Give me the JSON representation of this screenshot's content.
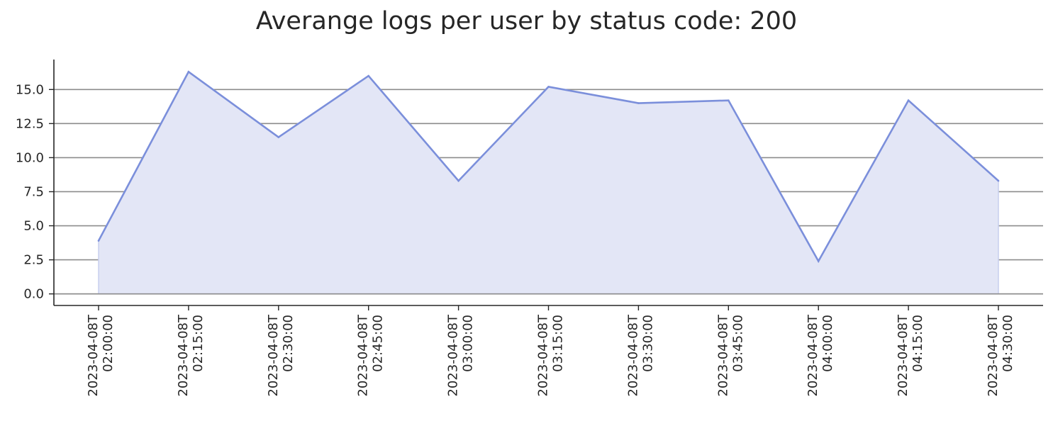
{
  "chart_data": {
    "type": "area",
    "title": "Averange logs per user by status code: 200",
    "xlabel": "",
    "ylabel": "",
    "x": [
      "2023-04-08T02:00:00",
      "2023-04-08T02:15:00",
      "2023-04-08T02:30:00",
      "2023-04-08T02:45:00",
      "2023-04-08T03:00:00",
      "2023-04-08T03:15:00",
      "2023-04-08T03:30:00",
      "2023-04-08T03:45:00",
      "2023-04-08T04:00:00",
      "2023-04-08T04:15:00",
      "2023-04-08T04:30:00"
    ],
    "x_tick_lines": [
      [
        "2023-04-08T",
        "02:00:00"
      ],
      [
        "2023-04-08T",
        "02:15:00"
      ],
      [
        "2023-04-08T",
        "02:30:00"
      ],
      [
        "2023-04-08T",
        "02:45:00"
      ],
      [
        "2023-04-08T",
        "03:00:00"
      ],
      [
        "2023-04-08T",
        "03:15:00"
      ],
      [
        "2023-04-08T",
        "03:30:00"
      ],
      [
        "2023-04-08T",
        "03:45:00"
      ],
      [
        "2023-04-08T",
        "04:00:00"
      ],
      [
        "2023-04-08T",
        "04:15:00"
      ],
      [
        "2023-04-08T",
        "04:30:00"
      ]
    ],
    "series": [
      {
        "values": [
          3.9,
          16.3,
          11.5,
          16.0,
          8.3,
          15.2,
          14.0,
          14.2,
          2.4,
          14.2,
          8.3
        ]
      }
    ],
    "y_ticks": [
      "0.0",
      "2.5",
      "5.0",
      "7.5",
      "10.0",
      "12.5",
      "15.0"
    ],
    "y_tick_values": [
      0,
      2.5,
      5,
      7.5,
      10,
      12.5,
      15
    ],
    "ylim": [
      -0.85,
      17.2
    ],
    "grid": "horizontal",
    "colors": {
      "line": "#7b8fdb",
      "fill": "#e3e6f6",
      "grid": "#8c8c8c",
      "axis": "#262626"
    }
  }
}
